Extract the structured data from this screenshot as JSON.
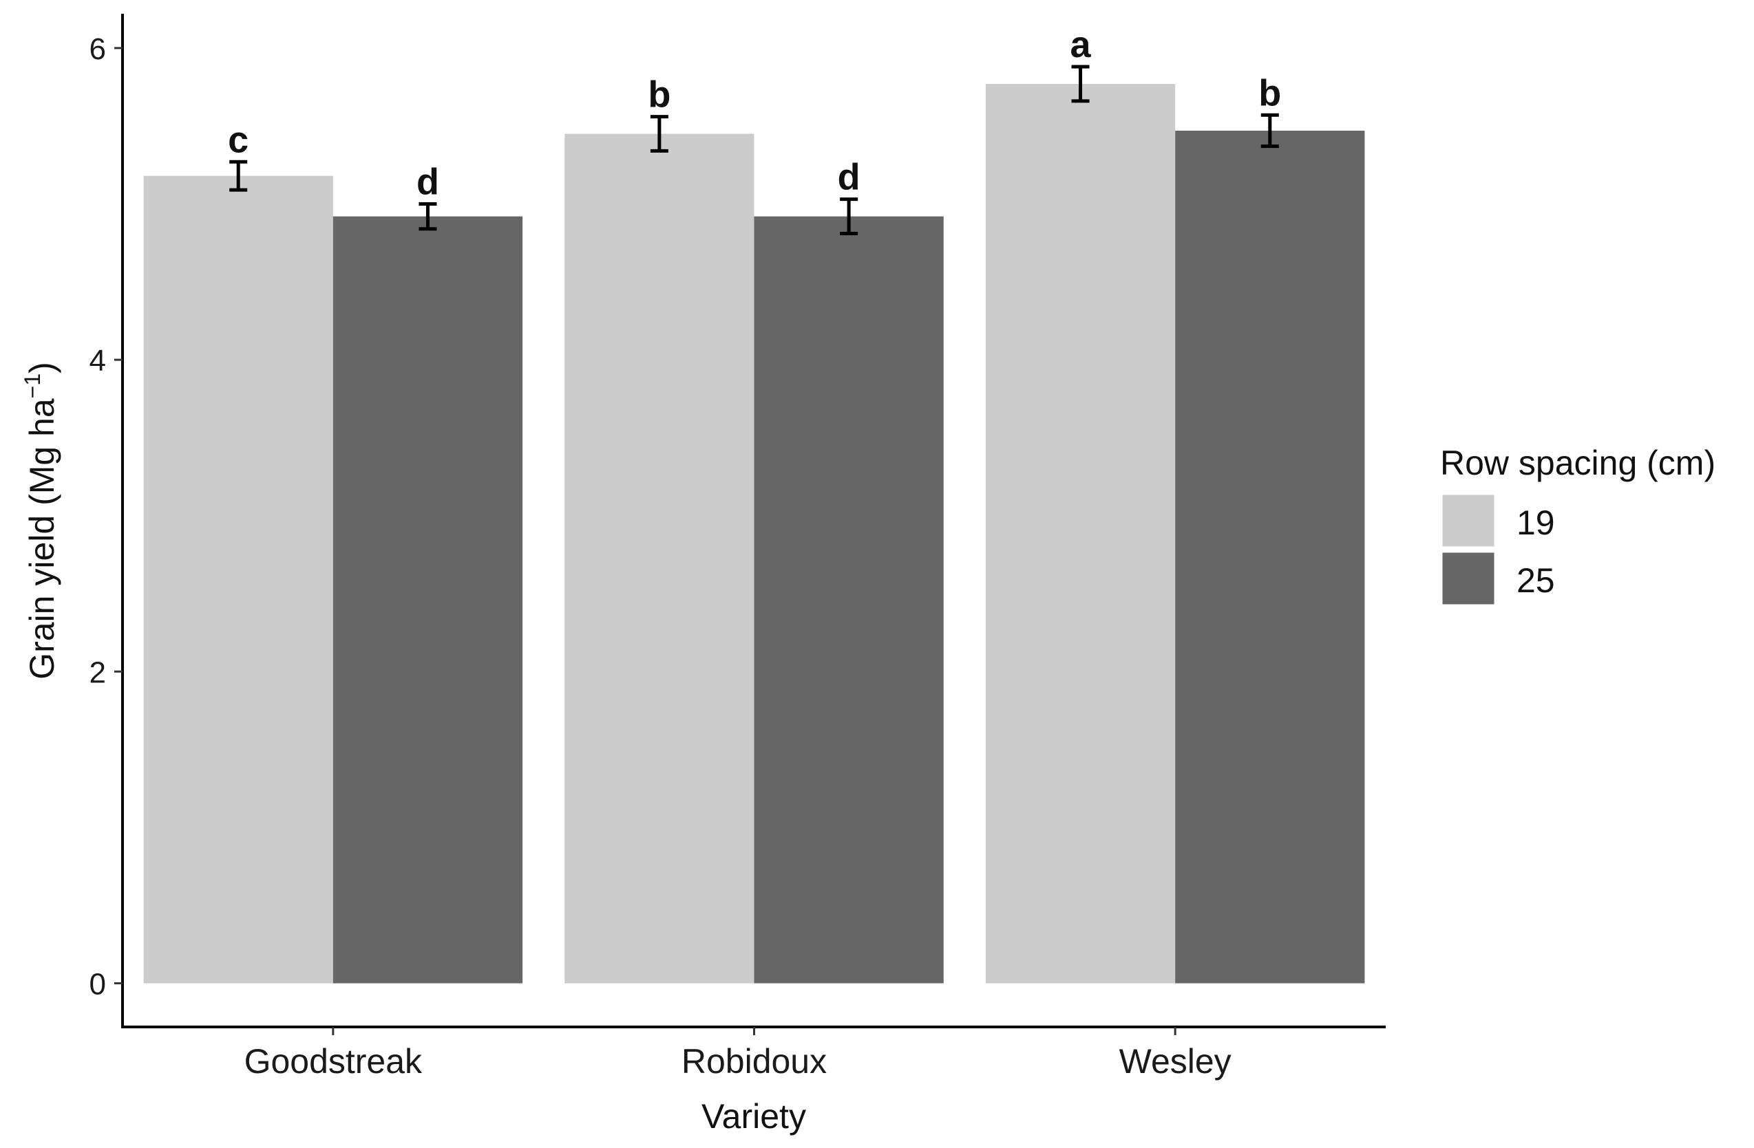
{
  "chart_data": {
    "type": "bar",
    "xlabel": "Variety",
    "ylabel_main": "Grain yield (Mg ha",
    "ylabel_sup": "−1",
    "ylabel_close": ")",
    "ylim": [
      -0.28,
      6.22
    ],
    "yticks": [
      "0",
      "2",
      "4",
      "6"
    ],
    "grid": false,
    "categories": [
      "Goodstreak",
      "Robidoux",
      "Wesley"
    ],
    "legend": {
      "title": "Row spacing (cm)",
      "placement": "right"
    },
    "series": [
      {
        "name": "19",
        "color": "#cccccc",
        "values": [
          5.18,
          5.45,
          5.77
        ],
        "errors": [
          0.09,
          0.11,
          0.11
        ],
        "letters": [
          "c",
          "b",
          "a"
        ]
      },
      {
        "name": "25",
        "color": "#666666",
        "values": [
          4.92,
          4.92,
          5.47
        ],
        "errors": [
          0.08,
          0.11,
          0.1
        ],
        "letters": [
          "d",
          "d",
          "b"
        ]
      }
    ]
  }
}
